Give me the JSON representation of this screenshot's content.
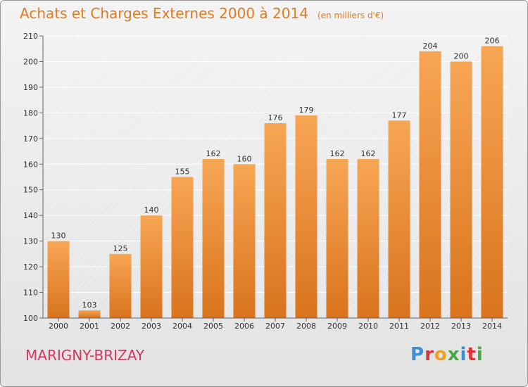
{
  "title": "Achats et Charges Externes 2000 à 2014",
  "unit": "(en milliers d'€)",
  "location": "MARIGNY-BRIZAY",
  "logo_text": "Proxiti",
  "colors": {
    "title": "#e07b20",
    "bar_light": "#f7a654",
    "bar_dark": "#d9731d",
    "location": "#d8335f",
    "grid": "#ffffff"
  },
  "chart_data": {
    "type": "bar",
    "title": "Achats et Charges Externes 2000 à 2014",
    "subtitle": "(en milliers d'€)",
    "categories": [
      "2000",
      "2001",
      "2002",
      "2003",
      "2004",
      "2005",
      "2006",
      "2007",
      "2008",
      "2009",
      "2010",
      "2011",
      "2012",
      "2013",
      "2014"
    ],
    "values": [
      130,
      103,
      125,
      140,
      155,
      162,
      160,
      176,
      179,
      162,
      162,
      177,
      204,
      200,
      206
    ],
    "ylim": [
      100,
      210
    ],
    "yticks": [
      100,
      110,
      120,
      130,
      140,
      150,
      160,
      170,
      180,
      190,
      200,
      210
    ],
    "grid": true,
    "data_labels": true
  }
}
